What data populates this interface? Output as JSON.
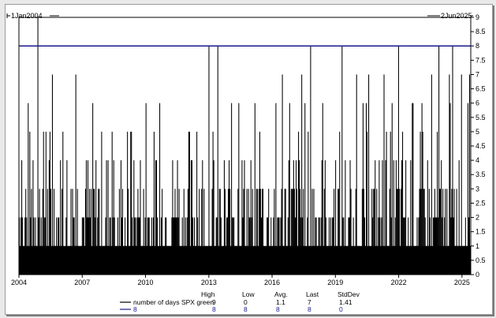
{
  "chart_data": {
    "type": "bar",
    "date_start_label": "1Jan2004",
    "date_end_label": "2Jun2025",
    "x_tick_labels": [
      "2004",
      "2007",
      "2010",
      "2013",
      "2016",
      "2019",
      "2022",
      "2025"
    ],
    "y_tick_labels": [
      "0",
      "0.5",
      "1",
      "1.5",
      "2",
      "2.5",
      "3",
      "3.5",
      "4",
      "4.5",
      "5",
      "5.5",
      "6",
      "6.5",
      "7",
      "7.5",
      "8",
      "8.5",
      "9"
    ],
    "ylim": [
      0,
      9
    ],
    "xlim": [
      "2004-01-01",
      "2025-06-02"
    ],
    "series": [
      {
        "name": "number of days SPX green",
        "color": "#000000",
        "style": "histogram",
        "peaks": [
          {
            "x": "2004-02-15",
            "y": 4
          },
          {
            "x": "2004-06-01",
            "y": 6
          },
          {
            "x": "2004-09-01",
            "y": 4
          },
          {
            "x": "2004-11-20",
            "y": 9
          },
          {
            "x": "2005-04-01",
            "y": 5
          },
          {
            "x": "2005-08-01",
            "y": 7
          },
          {
            "x": "2006-02-01",
            "y": 5
          },
          {
            "x": "2006-09-01",
            "y": 7
          },
          {
            "x": "2007-04-01",
            "y": 4
          },
          {
            "x": "2008-06-01",
            "y": 5
          },
          {
            "x": "2009-05-01",
            "y": 5
          },
          {
            "x": "2010-01-01",
            "y": 6
          },
          {
            "x": "2010-09-01",
            "y": 6
          },
          {
            "x": "2011-07-01",
            "y": 4
          },
          {
            "x": "2012-06-01",
            "y": 5
          },
          {
            "x": "2013-01-05",
            "y": 8
          },
          {
            "x": "2013-06-01",
            "y": 8
          },
          {
            "x": "2014-06-01",
            "y": 6
          },
          {
            "x": "2015-06-01",
            "y": 5
          },
          {
            "x": "2016-07-01",
            "y": 7
          },
          {
            "x": "2016-11-01",
            "y": 6
          },
          {
            "x": "2017-06-01",
            "y": 7
          },
          {
            "x": "2017-11-01",
            "y": 8
          },
          {
            "x": "2018-06-01",
            "y": 6
          },
          {
            "x": "2019-05-01",
            "y": 8
          },
          {
            "x": "2020-01-01",
            "y": 7
          },
          {
            "x": "2020-08-01",
            "y": 7
          },
          {
            "x": "2021-05-01",
            "y": 7
          },
          {
            "x": "2022-01-01",
            "y": 8
          },
          {
            "x": "2022-09-01",
            "y": 6
          },
          {
            "x": "2023-03-01",
            "y": 5
          },
          {
            "x": "2023-08-01",
            "y": 7
          },
          {
            "x": "2023-12-01",
            "y": 8
          },
          {
            "x": "2024-06-01",
            "y": 7
          },
          {
            "x": "2024-08-01",
            "y": 8
          },
          {
            "x": "2025-01-01",
            "y": 7
          },
          {
            "x": "2025-05-20",
            "y": 7
          }
        ]
      },
      {
        "name": "8",
        "color": "#1a1a8c",
        "style": "line",
        "constant": 8
      }
    ],
    "stats_table": {
      "headers": [
        "High",
        "Low",
        "Avg.",
        "Last",
        "StdDev"
      ],
      "rows": [
        {
          "label": "number of days SPX green",
          "values": [
            "9",
            "0",
            "1.1",
            "7",
            "1.41"
          ]
        },
        {
          "label": "8",
          "values": [
            "8",
            "8",
            "8",
            "8",
            "0"
          ]
        }
      ]
    },
    "grid": false,
    "legend": "bottom"
  }
}
